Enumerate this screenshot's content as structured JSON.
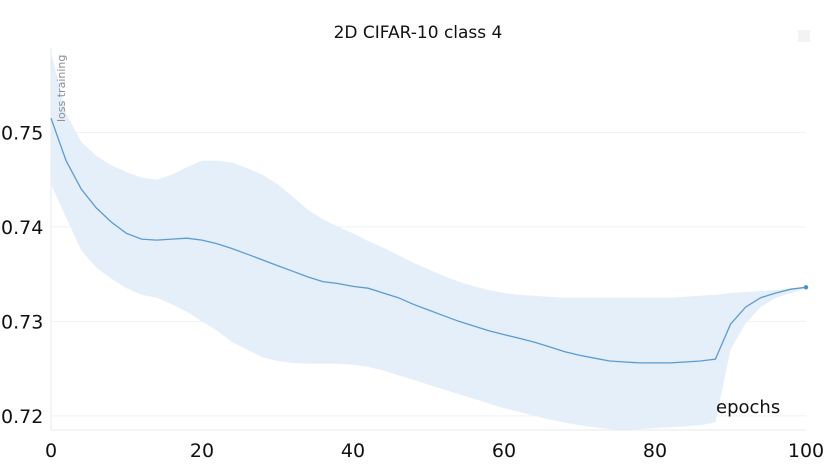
{
  "chart_data": {
    "type": "line",
    "title": "2D CIFAR-10 class 4",
    "ylabel": "loss training",
    "xlabel": "epochs",
    "xlim": [
      0,
      100
    ],
    "ylim": [
      0.7185,
      0.7585
    ],
    "x_ticks": [
      0,
      20,
      40,
      60,
      80,
      100
    ],
    "y_ticks": [
      0.72,
      0.73,
      0.74,
      0.75
    ],
    "y_tick_labels": [
      "0.72",
      "0.73",
      "0.74",
      "0.75"
    ],
    "grid": true,
    "colors": {
      "line": "#5a9bd5",
      "band": "#e3eef9"
    },
    "series": [
      {
        "x": [
          0,
          2,
          4,
          6,
          8,
          10,
          12,
          14,
          16,
          18,
          20,
          22,
          24,
          26,
          28,
          30,
          32,
          34,
          36,
          38,
          40,
          42,
          44,
          46,
          48,
          50,
          52,
          54,
          56,
          58,
          60,
          62,
          64,
          66,
          68,
          70,
          72,
          74,
          76,
          78,
          80,
          82,
          84,
          86,
          88,
          90,
          92,
          94,
          96,
          98,
          100
        ],
        "values": [
          0.7515,
          0.747,
          0.744,
          0.742,
          0.7405,
          0.7393,
          0.7387,
          0.7386,
          0.7387,
          0.7388,
          0.7386,
          0.7382,
          0.7377,
          0.7371,
          0.7365,
          0.7359,
          0.7353,
          0.7347,
          0.7342,
          0.734,
          0.7337,
          0.7335,
          0.733,
          0.7325,
          0.7318,
          0.7312,
          0.7306,
          0.73,
          0.7295,
          0.729,
          0.7286,
          0.7282,
          0.7278,
          0.7273,
          0.7268,
          0.7264,
          0.7261,
          0.7258,
          0.7257,
          0.7256,
          0.7256,
          0.7256,
          0.7257,
          0.7258,
          0.726,
          0.7297,
          0.7315,
          0.7325,
          0.733,
          0.7334,
          0.7336
        ],
        "upper": [
          0.7585,
          0.752,
          0.749,
          0.7475,
          0.7465,
          0.7458,
          0.7452,
          0.745,
          0.7455,
          0.7463,
          0.747,
          0.747,
          0.7468,
          0.7462,
          0.7455,
          0.7445,
          0.7432,
          0.7418,
          0.7408,
          0.74,
          0.7393,
          0.7385,
          0.7378,
          0.737,
          0.7362,
          0.7355,
          0.7348,
          0.7342,
          0.7337,
          0.7333,
          0.733,
          0.7328,
          0.7327,
          0.7326,
          0.7325,
          0.7325,
          0.7325,
          0.7325,
          0.7325,
          0.7325,
          0.7325,
          0.7325,
          0.7326,
          0.7327,
          0.7328,
          0.733,
          0.7331,
          0.7332,
          0.7333,
          0.7335,
          0.7337
        ],
        "lower": [
          0.7445,
          0.741,
          0.7375,
          0.7357,
          0.7345,
          0.7335,
          0.7328,
          0.7325,
          0.7318,
          0.731,
          0.73,
          0.729,
          0.7278,
          0.727,
          0.7262,
          0.7258,
          0.7256,
          0.7255,
          0.7255,
          0.7255,
          0.7254,
          0.7252,
          0.7248,
          0.7243,
          0.7238,
          0.7233,
          0.7228,
          0.7223,
          0.7218,
          0.7213,
          0.7208,
          0.7204,
          0.72,
          0.7196,
          0.7193,
          0.719,
          0.7188,
          0.7186,
          0.7185,
          0.7186,
          0.7187,
          0.7188,
          0.7189,
          0.719,
          0.7193,
          0.727,
          0.7298,
          0.7315,
          0.7325,
          0.733,
          0.7335
        ]
      }
    ]
  }
}
